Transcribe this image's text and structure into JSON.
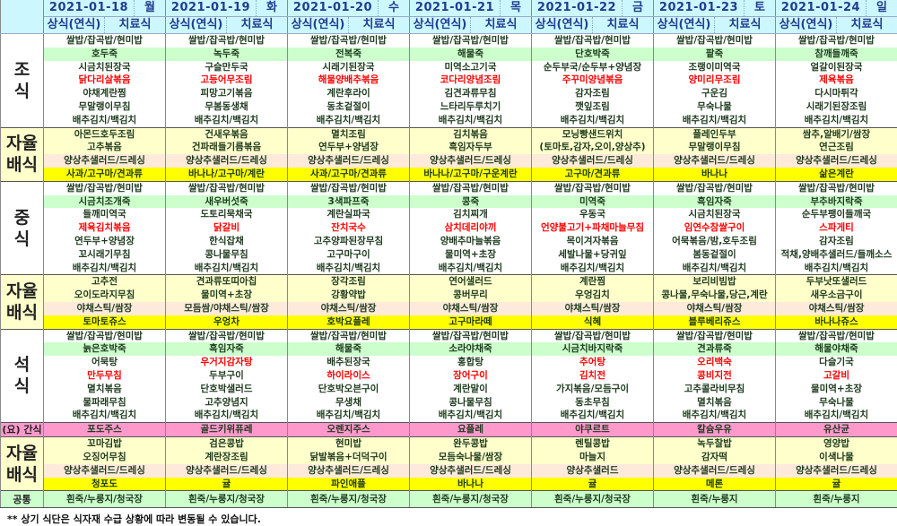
{
  "header": {
    "col1": "상식(연식)",
    "col2": "치료식"
  },
  "labels": {
    "breakfast": "조식",
    "self": "자율배식",
    "lunch": "중식",
    "dinner": "석식",
    "snack": "(요) 간식",
    "common": "공통"
  },
  "colors": {
    "header_bg": "#ccf7ff",
    "porridge_row": "#ccffcc",
    "self_row": "#ffffcc",
    "salad_row": "#fdeada",
    "fruit_row": "#ffff00",
    "snack_row": "#ff99cc",
    "common_row": "#ccffcc",
    "highlight": "#ff0000"
  },
  "note": "** 상기 식단은 식자재 수급 상황에 따라 변동될 수 있습니다.",
  "days": [
    {
      "date": "2021-01-18",
      "weekday": "월",
      "breakfast": [
        "쌀밥/잡곡밥/현미밥",
        "호두죽",
        "시금치된장국",
        "닭다리살볶음",
        "야채계란찜",
        "무말랭이무침",
        "배추김치/백김치"
      ],
      "breakfast_self": [
        "아몬드호두조림",
        "고추볶음",
        "양상추샐러드/드레싱",
        "사과/고구마/견과류"
      ],
      "lunch": [
        "쌀밥/잡곡밥/현미밥",
        "시금치조개죽",
        "들깨미역국",
        "제육김치볶음",
        "연두부+양념장",
        "꼬시래기무침",
        "배추김치/백김치"
      ],
      "lunch_self": [
        "고추전",
        "오이도라지무침",
        "야채스틱/쌈장",
        "토마토쥬스"
      ],
      "dinner": [
        "쌀밥/잡곡밥/현미밥",
        "늙은호박죽",
        "어묵탕",
        "만두무침",
        "멸치볶음",
        "물파래무침",
        "배추김치/백김치"
      ],
      "snack": "포도주스",
      "dinner_self": [
        "꼬마김밥",
        "오징어무침",
        "양상추샐러드/드레싱",
        "청포도"
      ],
      "common": "흰죽/누룽지/청국장",
      "red": {
        "breakfast": [
          3
        ],
        "lunch": [
          3
        ],
        "dinner": [
          3
        ]
      }
    },
    {
      "date": "2021-01-19",
      "weekday": "화",
      "breakfast": [
        "쌀밥/잡곡밥/현미밥",
        "녹두죽",
        "구슬만두국",
        "고등어무조림",
        "피망고기볶음",
        "무봄동생채",
        "배추김치/백김치"
      ],
      "breakfast_self": [
        "건새우볶음",
        "건파래들기름볶음",
        "양상추샐러드/드레싱",
        "바나나/고구마/계란"
      ],
      "lunch": [
        "쌀밥/잡곡밥/현미밥",
        "새우버섯죽",
        "도토리묵채국",
        "닭갈비",
        "한식잡채",
        "콩나물무침",
        "배추김치/백김치"
      ],
      "lunch_self": [
        "견과류또띠아칩",
        "물미역+초장",
        "모듬쌈/야채스틱/쌈장",
        "우엉차"
      ],
      "dinner": [
        "쌀밥/잡곡밥/현미밥",
        "흑임자죽",
        "우거지감자탕",
        "두부구이",
        "단호박샐러드",
        "고추양념지",
        "배추김치/백김치"
      ],
      "snack": "골드키위퓨레",
      "dinner_self": [
        "검은콩밥",
        "계란장조림",
        "양상추샐러드/드레싱",
        "귤"
      ],
      "common": "흰죽/누룽지/청국장",
      "red": {
        "breakfast": [
          3
        ],
        "lunch": [
          3
        ],
        "dinner": [
          2
        ]
      }
    },
    {
      "date": "2021-01-20",
      "weekday": "수",
      "breakfast": [
        "쌀밥/잡곡밥/현미밥",
        "전복죽",
        "시래기된장국",
        "해물양배추볶음",
        "계란후라이",
        "동초겉절이",
        "배추김치/백김치"
      ],
      "breakfast_self": [
        "멸치조림",
        "연두부+양념장",
        "양상추샐러드/드레싱",
        "사과/고구마/견과류"
      ],
      "lunch": [
        "쌀밥/잡곡밥/현미밥",
        "3색파프죽",
        "계란실파국",
        "잔치국수",
        "고추양파된장무침",
        "고구마구이",
        "배추김치/백김치"
      ],
      "lunch_self": [
        "장각조림",
        "강황약밥",
        "야채스틱/쌈장",
        "호박요플레"
      ],
      "dinner": [
        "쌀밥/잡곡밥/현미밥",
        "해물죽",
        "배추된장국",
        "하이라이스",
        "단호박오븐구이",
        "무생채",
        "배추김치/백김치"
      ],
      "snack": "오렌지주스",
      "dinner_self": [
        "현미밥",
        "닭발볶음+더덕구이",
        "양상추샐러드/드레싱",
        "파인애플"
      ],
      "common": "흰죽/누룽지/청국장",
      "red": {
        "breakfast": [
          3
        ],
        "lunch": [
          3
        ],
        "dinner": [
          3
        ]
      }
    },
    {
      "date": "2021-01-21",
      "weekday": "목",
      "breakfast": [
        "쌀밥/잡곡밥/현미밥",
        "해물죽",
        "미역소고기국",
        "코다리양념조림",
        "김견과류무침",
        "느타리두루치기",
        "배추김치/백김치"
      ],
      "breakfast_self": [
        "김치볶음",
        "흑임자두부",
        "양상추샐러드/드레싱",
        "바나나/고구마/구운계란"
      ],
      "lunch": [
        "쌀밥/잡곡밥/현미밥",
        "콩죽",
        "김치찌개",
        "삼치데리야끼",
        "양배추마늘볶음",
        "물미역+초장",
        "배추김치/백김치"
      ],
      "lunch_self": [
        "연어샐러드",
        "콩버무리",
        "야채스틱/쌈장",
        "고구마라떼"
      ],
      "dinner": [
        "쌀밥/잡곡밥/현미밥",
        "소라야채죽",
        "홍합탕",
        "장어구이",
        "계란말이",
        "콩나물무침",
        "배추김치/백김치"
      ],
      "snack": "요플레",
      "dinner_self": [
        "완두콩밥",
        "모듬숙나물/쌈장",
        "양상추샐러드/드레싱",
        "바나나"
      ],
      "common": "흰죽/누룽지/청국장",
      "red": {
        "breakfast": [
          3
        ],
        "lunch": [
          3
        ],
        "dinner": [
          3
        ]
      }
    },
    {
      "date": "2021-01-22",
      "weekday": "금",
      "breakfast": [
        "쌀밥/잡곡밥/현미밥",
        "단호박죽",
        "순두부국/순두부+양념장",
        "주꾸미양념볶음",
        "감자조림",
        "깻잎조림",
        "배추김치/백김치"
      ],
      "breakfast_self": [
        "모닝빵샌드위치",
        "(토마토,감자,오이,양상추)",
        "양상추샐러드/드레싱",
        "고구마/견과류"
      ],
      "lunch": [
        "쌀밥/잡곡밥/현미밥",
        "미역죽",
        "우동국",
        "언양불고기+파채마늘무침",
        "목이겨자볶음",
        "세발나물+당귀잎",
        "배추김치/백김치"
      ],
      "lunch_self": [
        "계란찜",
        "우엉김치",
        "야채스틱/쌈장",
        "식혜"
      ],
      "dinner": [
        "쌀밥/잡곡밥/현미밥",
        "시금치바지락죽",
        "추어탕",
        "김치전",
        "가지볶음/모듬구이",
        "동초무침",
        "배추김치/백김치"
      ],
      "snack": "야쿠르트",
      "dinner_self": [
        "렌틸콩밥",
        "마늘지",
        "양상추샐러드",
        "귤"
      ],
      "common": "흰죽/누룽지/청국장",
      "red": {
        "breakfast": [
          3
        ],
        "lunch": [
          3
        ],
        "dinner": [
          2,
          3
        ]
      }
    },
    {
      "date": "2021-01-23",
      "weekday": "토",
      "breakfast": [
        "쌀밥/잡곡밥/현미밥",
        "팥죽",
        "조랭이미역국",
        "양미리무조림",
        "구운김",
        "무숙나물",
        "배추김치/백김치"
      ],
      "breakfast_self": [
        "플레인두부",
        "무말랭이무침",
        "양상추샐러드/드레싱",
        "바나나"
      ],
      "lunch": [
        "쌀밥/잡곡밥/현미밥",
        "흑임자죽",
        "시금치된장국",
        "임연수참쌀구이",
        "어묵볶음/밤,호두조림",
        "봄동겉절이",
        "배추김치/백김치"
      ],
      "lunch_self": [
        "보리비빔밥",
        "콩나물,무숙나물,당근,계란",
        "야채스틱/쌈장",
        "블루베리쥬스"
      ],
      "dinner": [
        "쌀밥/잡곡밥/현미밥",
        "견과류죽",
        "오리백숙",
        "콩비지전",
        "고추콜라비무침",
        "멸치볶음",
        "배추김치/백김치"
      ],
      "snack": "칼슘우유",
      "dinner_self": [
        "녹두찰밥",
        "감자떡",
        "양상추샐러드/드레싱",
        "메론"
      ],
      "common": "흰죽/누룽지",
      "red": {
        "breakfast": [
          3
        ],
        "lunch": [
          3
        ],
        "dinner": [
          2,
          3
        ]
      }
    },
    {
      "date": "2021-01-24",
      "weekday": "일",
      "breakfast": [
        "쌀밥/잡곡밥/현미밥",
        "참깨들깨죽",
        "얼갈이된장국",
        "제육볶음",
        "다시마튀각",
        "시래기된장조림",
        "배추김치/백김치"
      ],
      "breakfast_self": [
        "쌈추,알배기/쌈장",
        "연근조림",
        "양상추샐러드/드레싱",
        "삶은계란"
      ],
      "lunch": [
        "쌀밥/잡곡밥/현미밥",
        "부추바지락죽",
        "순두부팽이들깨국",
        "스파게티",
        "감자조림",
        "적채,양배추샐러드/들깨소스",
        "배추김치/백김치"
      ],
      "lunch_self": [
        "두부낫또샐러드",
        "새우소금구이",
        "야채스틱/쌈장",
        "바나나쥬스"
      ],
      "dinner": [
        "쌀밥/잡곡밥/현미밥",
        "해물야채죽",
        "다슬기국",
        "고갈비",
        "물미역+초장",
        "무숙나물",
        "배추김치/백김치"
      ],
      "snack": "유산균",
      "dinner_self": [
        "영양밥",
        "이색나물",
        "양상추샐러드/드레싱",
        "귤"
      ],
      "common": "흰죽/누룽지",
      "red": {
        "breakfast": [
          3
        ],
        "lunch": [
          3
        ],
        "dinner": [
          3
        ]
      }
    }
  ]
}
